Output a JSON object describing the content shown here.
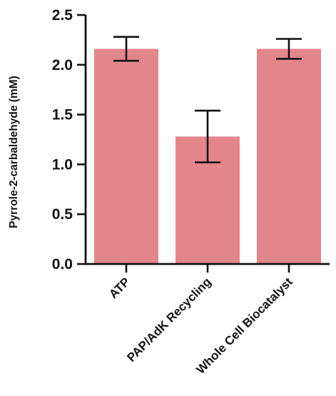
{
  "chart_data": {
    "type": "bar",
    "title": "",
    "xlabel": "",
    "ylabel": "Pyrrole-2-carbaldehyde (mM)",
    "categories": [
      "ATP",
      "PAP/AdK Recycling",
      "Whole Cell Biocatalyst"
    ],
    "values": [
      2.16,
      1.28,
      2.16
    ],
    "errors": [
      0.12,
      0.26,
      0.1
    ],
    "ylim": [
      0,
      2.5
    ],
    "yticks": [
      0.0,
      0.5,
      1.0,
      1.5,
      2.0,
      2.5
    ],
    "ytick_labels": [
      "0.0",
      "0.5",
      "1.0",
      "1.5",
      "2.0",
      "2.5"
    ],
    "grid": false,
    "bar_color": "#e3868c",
    "axis_color": "#111111"
  }
}
